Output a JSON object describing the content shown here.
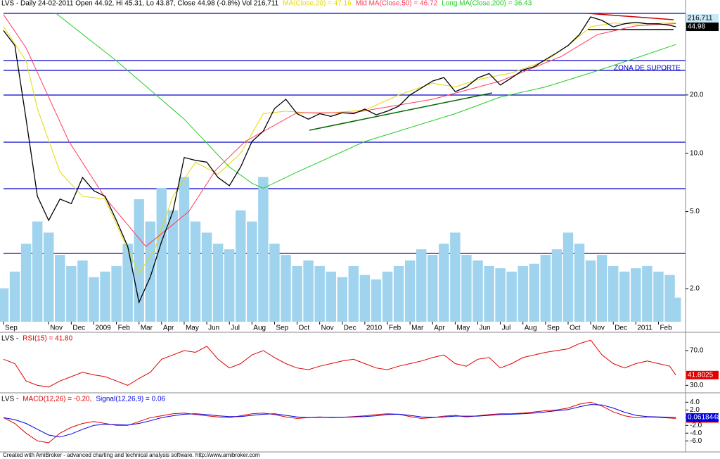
{
  "chart_data": [
    {
      "type": "line",
      "title": "LVS - Daily 24-02-2011 Open 44.92, Hi 45.31, Lo 43.87, Close 44.98 (-0.8%) Vol 216,711",
      "log_scale": true,
      "xlim": [
        0,
        30.2
      ],
      "ylim": [
        1.35,
        55
      ],
      "yticks": [
        {
          "value": 2,
          "label": "2.0"
        },
        {
          "value": 5,
          "label": "5.0"
        },
        {
          "value": 10,
          "label": "10.0"
        },
        {
          "value": 20,
          "label": "20.0"
        }
      ],
      "xticks": [
        {
          "value": 0,
          "label": "Sep"
        },
        {
          "value": 2,
          "label": "Nov"
        },
        {
          "value": 3,
          "label": "Dec"
        },
        {
          "value": 4,
          "label": "2009"
        },
        {
          "value": 5,
          "label": "Feb"
        },
        {
          "value": 6,
          "label": "Mar"
        },
        {
          "value": 7,
          "label": "Apr"
        },
        {
          "value": 8,
          "label": "May"
        },
        {
          "value": 9,
          "label": "Jun"
        },
        {
          "value": 10,
          "label": "Jul"
        },
        {
          "value": 11,
          "label": "Aug"
        },
        {
          "value": 12,
          "label": "Sep"
        },
        {
          "value": 13,
          "label": "Oct"
        },
        {
          "value": 14,
          "label": "Nov"
        },
        {
          "value": 15,
          "label": "Dec"
        },
        {
          "value": 16,
          "label": "2010"
        },
        {
          "value": 17,
          "label": "Feb"
        },
        {
          "value": 18,
          "label": "Mar"
        },
        {
          "value": 19,
          "label": "Apr"
        },
        {
          "value": 20,
          "label": "May"
        },
        {
          "value": 21,
          "label": "Jun"
        },
        {
          "value": 22,
          "label": "Jul"
        },
        {
          "value": 23,
          "label": "Aug"
        },
        {
          "value": 24,
          "label": "Sep"
        },
        {
          "value": 25,
          "label": "Oct"
        },
        {
          "value": 26,
          "label": "Nov"
        },
        {
          "value": 27,
          "label": "Dec"
        },
        {
          "value": 28,
          "label": "2011"
        },
        {
          "value": 29,
          "label": "Feb"
        }
      ],
      "annotation": "ZONA DE SUPORTE",
      "x": [
        0,
        0.5,
        1,
        1.5,
        2,
        2.5,
        3,
        3.5,
        4,
        4.5,
        5,
        5.5,
        6,
        6.5,
        7,
        7.5,
        8,
        8.5,
        9,
        9.5,
        10,
        10.5,
        11,
        11.5,
        12,
        12.5,
        13,
        13.5,
        14,
        14.5,
        15,
        15.5,
        16,
        16.5,
        17,
        17.5,
        18,
        18.5,
        19,
        19.5,
        20,
        20.5,
        21,
        21.5,
        22,
        22.5,
        23,
        23.5,
        24,
        24.5,
        25,
        25.5,
        26,
        26.5,
        27,
        27.5,
        28,
        28.5,
        29,
        29.5,
        29.77
      ],
      "price": {
        "color": "#000000",
        "values": [
          43,
          36,
          15,
          6,
          4.5,
          5.8,
          5.5,
          7.5,
          6.4,
          6,
          4.5,
          3.3,
          1.7,
          2.3,
          3.5,
          5,
          9.5,
          9.2,
          9,
          7.5,
          6.8,
          8.5,
          11.5,
          13,
          17,
          19,
          16,
          15,
          16,
          15.5,
          16.2,
          16,
          16.9,
          15.8,
          16.5,
          17.5,
          20,
          21.7,
          23.6,
          24.6,
          20.8,
          22,
          24.5,
          25.8,
          22.5,
          24.5,
          26.9,
          28,
          30.5,
          33,
          36,
          41,
          50.6,
          48.5,
          44.9,
          46.6,
          47.5,
          46.6,
          46.6,
          45.8,
          44.98
        ]
      },
      "volume": {
        "color": "#9fd3ee",
        "ylim": [
          0,
          2800000
        ],
        "last_label": "216,711",
        "values": [
          300000,
          450000,
          700000,
          900000,
          800000,
          600000,
          500000,
          550000,
          400000,
          450000,
          500000,
          700000,
          1100000,
          900000,
          1200000,
          1000000,
          1300000,
          900000,
          800000,
          700000,
          650000,
          1000000,
          900000,
          1300000,
          700000,
          600000,
          500000,
          550000,
          500000,
          450000,
          400000,
          500000,
          420000,
          380000,
          450000,
          500000,
          550000,
          650000,
          600000,
          700000,
          800000,
          600000,
          550000,
          500000,
          480000,
          450000,
          500000,
          520000,
          600000,
          650000,
          800000,
          700000,
          550000,
          600000,
          500000,
          450000,
          480000,
          500000,
          450000,
          420000,
          216711
        ]
      },
      "series": [
        {
          "name": "MA(Close,20) = 47.16",
          "color": "#e6d800",
          "x": [
            0,
            1,
            1.5,
            2.5,
            3.5,
            4.5,
            5.5,
            6,
            6.7,
            7.5,
            8.5,
            9.5,
            10.5,
            11.5,
            12.5,
            14,
            16,
            17.5,
            19,
            20,
            21,
            22.5,
            24,
            25,
            26,
            27,
            28,
            29.77
          ],
          "values": [
            45,
            30,
            17,
            8,
            6,
            5.8,
            3.2,
            2.4,
            3.2,
            6,
            9,
            7.8,
            10,
            16,
            16.5,
            16,
            16.7,
            20,
            23,
            22,
            24,
            26,
            30,
            36,
            45,
            47,
            46.5,
            47.16
          ]
        },
        {
          "name": "Mid MA(Close,50) = 46.72",
          "color": "#ff3b5c",
          "x": [
            0,
            1.0,
            2.9,
            4.5,
            6.3,
            8.2,
            9.4,
            10.7,
            13,
            15.5,
            19,
            22,
            24.7,
            26.3,
            28,
            29.77
          ],
          "values": [
            52,
            35,
            11.5,
            5.9,
            3.3,
            5,
            8.2,
            11.5,
            16.2,
            16.2,
            19,
            23.6,
            31.6,
            41,
            45.5,
            46.72
          ]
        },
        {
          "name": "Long MA(Close,200) = 36.43",
          "color": "#22cc22",
          "x": [
            2.3,
            5,
            8,
            10,
            11,
            11.5,
            13,
            16,
            20,
            22,
            24,
            26,
            28,
            29.77
          ],
          "values": [
            53,
            30,
            15,
            8.5,
            7,
            6.6,
            8,
            11.5,
            16,
            19.5,
            22,
            26,
            31,
            36.43
          ]
        }
      ]
    },
    {
      "type": "line",
      "title": "LVS -",
      "xlim": [
        0,
        30.2
      ],
      "ylim": [
        23,
        87
      ],
      "yticks": [
        {
          "value": 30,
          "label": "30.0"
        },
        {
          "value": 70,
          "label": "70.0"
        }
      ],
      "x": [
        0,
        0.5,
        1,
        1.5,
        2,
        2.5,
        3,
        3.5,
        4,
        4.5,
        5,
        5.5,
        6,
        6.5,
        7,
        7.5,
        8,
        8.5,
        9,
        9.5,
        10,
        10.5,
        11,
        11.5,
        12,
        12.5,
        13,
        13.5,
        14,
        14.5,
        15,
        15.5,
        16,
        16.5,
        17,
        17.5,
        18,
        18.5,
        19,
        19.5,
        20,
        20.5,
        21,
        21.5,
        22,
        22.5,
        23,
        23.5,
        24,
        24.5,
        25,
        25.5,
        26,
        26.5,
        27,
        27.5,
        28,
        28.5,
        29,
        29.5,
        29.77
      ],
      "series": [
        {
          "name": "RSI(15) = 41.80",
          "color": "#e00000",
          "values": [
            60,
            55,
            35,
            30,
            28,
            35,
            40,
            45,
            42,
            40,
            35,
            30,
            38,
            45,
            60,
            65,
            70,
            68,
            75,
            60,
            50,
            55,
            65,
            70,
            62,
            55,
            50,
            48,
            52,
            55,
            58,
            60,
            55,
            50,
            48,
            52,
            55,
            58,
            62,
            65,
            55,
            52,
            60,
            62,
            50,
            55,
            62,
            65,
            68,
            70,
            72,
            78,
            82,
            65,
            55,
            50,
            55,
            58,
            55,
            52,
            41.8025
          ]
        }
      ]
    },
    {
      "type": "line",
      "title": "LVS -",
      "xlim": [
        0,
        30.2
      ],
      "ylim": [
        -8.5,
        5.7
      ],
      "yticks": [
        {
          "value": 4,
          "label": "4.0"
        },
        {
          "value": 2,
          "label": "2.0"
        },
        {
          "value": 0,
          "label": "0.0"
        },
        {
          "value": -2,
          "label": "-2.0"
        },
        {
          "value": -4,
          "label": "-4.0"
        },
        {
          "value": -6,
          "label": "-6.0"
        }
      ],
      "x": [
        0,
        0.5,
        1,
        1.5,
        2,
        2.5,
        3,
        3.5,
        4,
        4.5,
        5,
        5.5,
        6,
        6.5,
        7,
        7.5,
        8,
        8.5,
        9,
        9.5,
        10,
        10.5,
        11,
        11.5,
        12,
        12.5,
        13,
        13.5,
        14,
        14.5,
        15,
        15.5,
        16,
        16.5,
        17,
        17.5,
        18,
        18.5,
        19,
        19.5,
        20,
        20.5,
        21,
        21.5,
        22,
        22.5,
        23,
        23.5,
        24,
        24.5,
        25,
        25.5,
        26,
        26.5,
        27,
        27.5,
        28,
        28.5,
        29,
        29.5,
        29.77
      ],
      "series": [
        {
          "name": "MACD(12,26) = -0.20,",
          "color": "#e00000",
          "values": [
            0,
            -1.5,
            -4,
            -6,
            -6.5,
            -4,
            -2.5,
            -1.5,
            -1,
            -1.5,
            -2,
            -2,
            -1,
            0,
            0.5,
            1,
            1.2,
            0.8,
            0.5,
            0.2,
            0,
            0.5,
            1,
            1.2,
            0.8,
            0.2,
            -0.2,
            0,
            0.2,
            0,
            0.1,
            0.3,
            0.5,
            0.8,
            1,
            0.9,
            0.3,
            -0.2,
            0,
            0.4,
            0.6,
            0.2,
            0.5,
            0.8,
            1,
            1.0,
            1.2,
            1.5,
            1.8,
            2.0,
            2.5,
            3.5,
            4,
            3,
            1.5,
            0.5,
            0,
            0.2,
            0.1,
            -0.1,
            -0.196601
          ]
        },
        {
          "name": "Signal(12,26,9) = 0.06",
          "color": "#0000e0",
          "values": [
            0,
            -0.5,
            -1.5,
            -3,
            -4.5,
            -5,
            -4.2,
            -3,
            -2,
            -1.7,
            -1.8,
            -1.9,
            -1.5,
            -0.8,
            0,
            0.5,
            0.9,
            1,
            0.8,
            0.5,
            0.3,
            0.3,
            0.6,
            0.9,
            1,
            0.6,
            0.2,
            0,
            0.1,
            0.1,
            0.1,
            0.2,
            0.3,
            0.5,
            0.8,
            0.9,
            0.6,
            0.2,
            0.1,
            0.2,
            0.4,
            0.4,
            0.4,
            0.6,
            0.8,
            0.9,
            1.0,
            1.2,
            1.5,
            1.8,
            2.1,
            2.8,
            3.4,
            3.3,
            2.5,
            1.4,
            0.6,
            0.3,
            0.2,
            0.1,
            0.0618448
          ]
        }
      ]
    }
  ],
  "footer": "Created with AmiBroker - advanced charting and technical analysis software. http://www.amibroker.com"
}
